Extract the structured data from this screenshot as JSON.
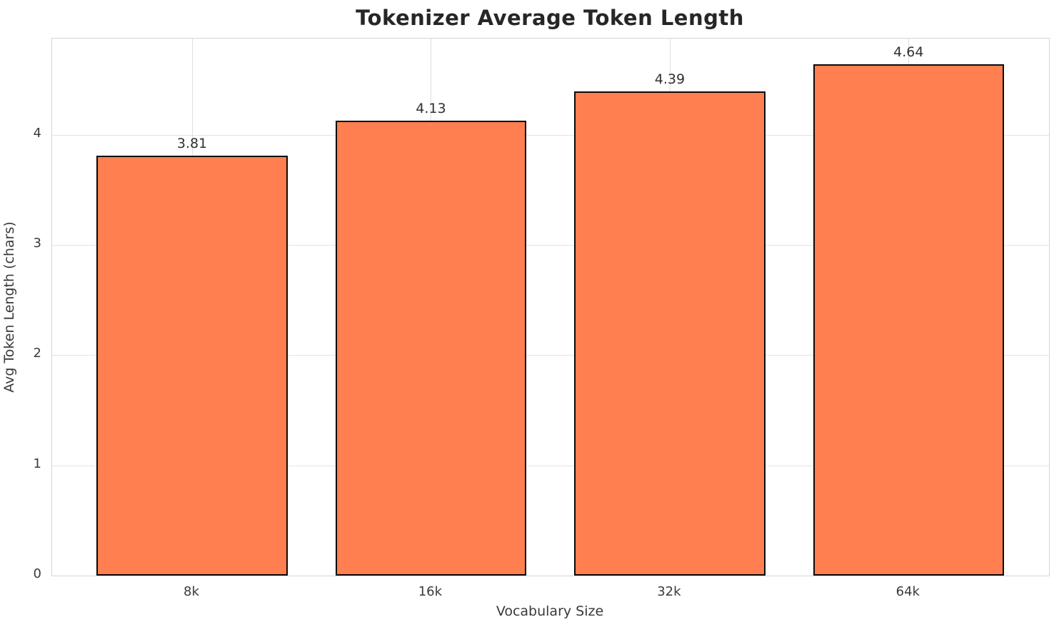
{
  "chart_data": {
    "type": "bar",
    "title": "Tokenizer Average Token Length",
    "xlabel": "Vocabulary Size",
    "ylabel": "Avg Token Length (chars)",
    "categories": [
      "8k",
      "16k",
      "32k",
      "64k"
    ],
    "values": [
      3.81,
      4.13,
      4.39,
      4.64
    ],
    "value_labels": [
      "3.81",
      "4.13",
      "4.39",
      "4.64"
    ],
    "yticks": [
      0,
      1,
      2,
      3,
      4
    ],
    "ylim": [
      0,
      4.872
    ],
    "xlim": [
      -0.586,
      3.588
    ],
    "bar_width_units": 0.8,
    "grid": "both",
    "legend": "none",
    "bar_fill_color": "#FF7F50",
    "bar_edge_color": "#0a0a0a",
    "background_color": "#ffffff"
  }
}
